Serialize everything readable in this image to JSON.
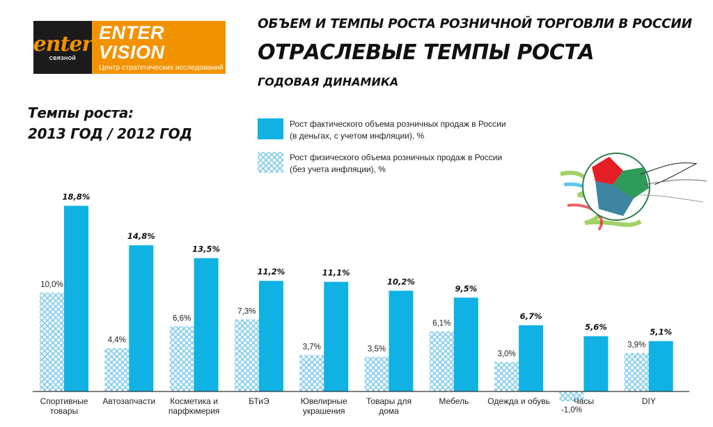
{
  "logo": {
    "left_word": "enter",
    "left_sub": "СВЯЗНОЙ",
    "title": "ENTER VISION",
    "subtitle": "Центр стратегических исследований",
    "colors": {
      "orange": "#f39200",
      "dark": "#1b1b1b"
    }
  },
  "header": {
    "title_line1": "ОБЪЕМ И ТЕМПЫ РОСТА РОЗНИЧНОЙ ТОРГОВЛИ В РОССИИ",
    "title_line2": "ОТРАСЛЕВЫЕ ТЕМПЫ РОСТА",
    "title_line3": "ГОДОВАЯ ДИНАМИКА"
  },
  "metric": {
    "line1": "Темпы роста:",
    "line2": "2013 ГОД / 2012 ГОД"
  },
  "legend": {
    "actual_line1": "Рост фактического объема розничных продаж в России",
    "actual_line2": "(в деньгах, с учетом инфляции), %",
    "physical_line1": "Рост физического объема розничных продаж в России",
    "physical_line2": "(без учета инфляции), %"
  },
  "chart_data": {
    "type": "bar",
    "categories": [
      [
        "Спортивные",
        "товары"
      ],
      [
        "Автозапчасти"
      ],
      [
        "Косметика и",
        "парфюмерия"
      ],
      [
        "БТиЭ"
      ],
      [
        "Ювелирные",
        "украшения"
      ],
      [
        "Товары для",
        "дома"
      ],
      [
        "Мебель"
      ],
      [
        "Одежда и обувь"
      ],
      [
        "Часы"
      ],
      [
        "DIY"
      ]
    ],
    "series": [
      {
        "name": "Рост физического объема розничных продаж в России (без учета инфляции), %",
        "values": [
          10.0,
          4.4,
          6.6,
          7.3,
          3.7,
          3.5,
          6.1,
          3.0,
          -1.0,
          3.9
        ],
        "labels": [
          "10,0%",
          "4,4%",
          "6,6%",
          "7,3%",
          "3,7%",
          "3,5%",
          "6,1%",
          "3,0%",
          "-1,0%",
          "3,9%"
        ],
        "pattern": "hatched",
        "color": "#8fd3ee"
      },
      {
        "name": "Рост фактического объема розничных продаж в России (в деньгах, с учетом инфляции), %",
        "values": [
          18.8,
          14.8,
          13.5,
          11.2,
          11.1,
          10.2,
          9.5,
          6.7,
          5.6,
          5.1
        ],
        "labels": [
          "18,8%",
          "14,8%",
          "13,5%",
          "11,2%",
          "11,1%",
          "10,2%",
          "9,5%",
          "6,7%",
          "5,6%",
          "5,1%"
        ],
        "pattern": "solid",
        "color": "#0fb2e3"
      }
    ],
    "baseline_color": "#333333",
    "grid": false
  }
}
